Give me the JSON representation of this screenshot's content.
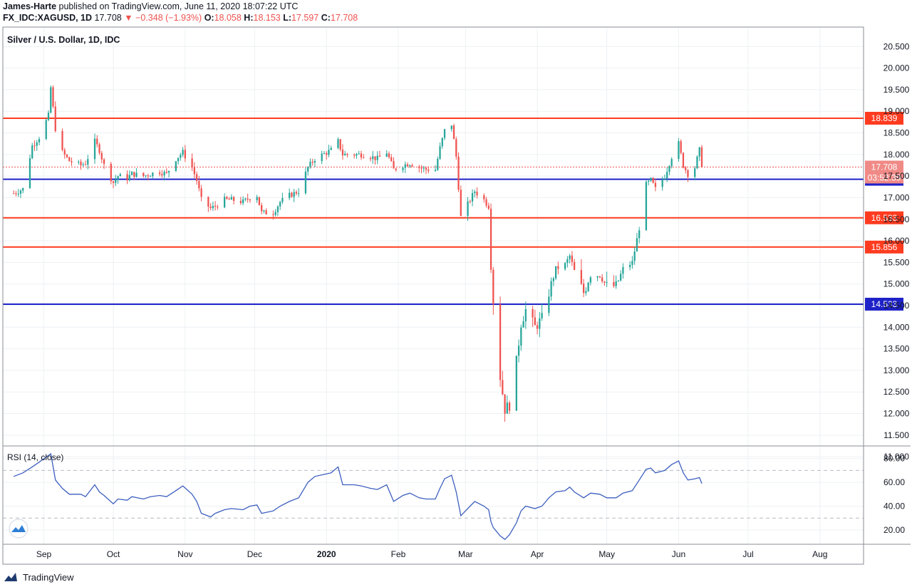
{
  "header": {
    "author": "James-Harte",
    "published_text": "published on TradingView.com, June 11, 2020 18:07:22 UTC",
    "symbol": "FX_IDC:XAGUSD, 1D",
    "last": "17.708",
    "change": "▼ −0.348 (−1.93%)",
    "o_label": "O:",
    "o": "18.058",
    "h_label": "H:",
    "h": "18.153",
    "l_label": "L:",
    "l": "17.597",
    "c_label": "C:",
    "c": "17.708"
  },
  "footer": {
    "brand": "TradingView",
    "logo_icon": "tradingview-logo-icon"
  },
  "colors": {
    "up": "#26a69a",
    "down": "#ef5350",
    "support": "#ff3b1f",
    "blue_line": "#1e22c8",
    "rsi": "#3d5fbf"
  },
  "chart_data": [
    {
      "type": "candlestick",
      "title": "Silver / U.S. Dollar, 1D, IDC",
      "ylim": [
        11.25,
        20.95
      ],
      "y_ticks": [
        "20.500",
        "20.000",
        "19.500",
        "19.000",
        "18.500",
        "18.000",
        "17.500",
        "17.000",
        "16.500",
        "16.000",
        "15.500",
        "15.000",
        "14.500",
        "14.000",
        "13.500",
        "13.000",
        "12.500",
        "12.000",
        "11.500",
        "11.000"
      ],
      "x_tick_labels": [
        "Sep",
        "Oct",
        "Nov",
        "Dec",
        "2020",
        "Feb",
        "Mar",
        "Apr",
        "May",
        "Jun",
        "Jul",
        "Aug"
      ],
      "horizontal_lines": [
        {
          "value": 18.839,
          "color": "red",
          "label": "18.839"
        },
        {
          "value": 17.426,
          "color": "blue",
          "label": "17.426"
        },
        {
          "value": 16.533,
          "color": "red",
          "label": "16.533"
        },
        {
          "value": 15.856,
          "color": "red",
          "label": "15.856"
        },
        {
          "value": 14.533,
          "color": "blue",
          "label": "14.533"
        }
      ],
      "last_price": {
        "value": 17.708,
        "label": "17.708",
        "countdown": "03:52:39"
      },
      "close_path": [
        [
          "2019-08-19",
          17.1
        ],
        [
          "2019-08-23",
          17.2
        ],
        [
          "2019-08-27",
          18.2
        ],
        [
          "2019-08-30",
          18.4
        ],
        [
          "2019-09-03",
          18.9
        ],
        [
          "2019-09-04",
          19.55
        ],
        [
          "2019-09-06",
          18.6
        ],
        [
          "2019-09-09",
          18.05
        ],
        [
          "2019-09-12",
          17.85
        ],
        [
          "2019-09-17",
          17.75
        ],
        [
          "2019-09-19",
          17.8
        ],
        [
          "2019-09-23",
          18.3
        ],
        [
          "2019-09-25",
          18.1
        ],
        [
          "2019-09-27",
          17.75
        ],
        [
          "2019-10-01",
          17.35
        ],
        [
          "2019-10-03",
          17.5
        ],
        [
          "2019-10-07",
          17.45
        ],
        [
          "2019-10-09",
          17.55
        ],
        [
          "2019-10-14",
          17.5
        ],
        [
          "2019-10-17",
          17.55
        ],
        [
          "2019-10-21",
          17.6
        ],
        [
          "2019-10-24",
          17.55
        ],
        [
          "2019-10-28",
          17.9
        ],
        [
          "2019-10-31",
          18.05
        ],
        [
          "2019-11-04",
          17.7
        ],
        [
          "2019-11-06",
          17.4
        ],
        [
          "2019-11-08",
          16.95
        ],
        [
          "2019-11-12",
          16.75
        ],
        [
          "2019-11-14",
          16.8
        ],
        [
          "2019-11-18",
          16.95
        ],
        [
          "2019-11-21",
          16.95
        ],
        [
          "2019-11-26",
          16.9
        ],
        [
          "2019-11-29",
          17.0
        ],
        [
          "2019-12-02",
          17.05
        ],
        [
          "2019-12-04",
          16.65
        ],
        [
          "2019-12-09",
          16.65
        ],
        [
          "2019-12-12",
          16.9
        ],
        [
          "2019-12-16",
          17.05
        ],
        [
          "2019-12-20",
          17.15
        ],
        [
          "2019-12-24",
          17.7
        ],
        [
          "2019-12-27",
          17.9
        ],
        [
          "2020-01-03",
          18.1
        ],
        [
          "2020-01-06",
          18.3
        ],
        [
          "2020-01-08",
          18.0
        ],
        [
          "2020-01-13",
          18.0
        ],
        [
          "2020-01-16",
          18.0
        ],
        [
          "2020-01-20",
          17.95
        ],
        [
          "2020-01-23",
          17.9
        ],
        [
          "2020-01-27",
          18.05
        ],
        [
          "2020-01-30",
          17.65
        ],
        [
          "2020-02-03",
          17.75
        ],
        [
          "2020-02-06",
          17.8
        ],
        [
          "2020-02-10",
          17.7
        ],
        [
          "2020-02-13",
          17.65
        ],
        [
          "2020-02-17",
          17.65
        ],
        [
          "2020-02-19",
          18.15
        ],
        [
          "2020-02-21",
          18.55
        ],
        [
          "2020-02-24",
          18.7
        ],
        [
          "2020-02-26",
          17.95
        ],
        [
          "2020-02-28",
          16.55
        ],
        [
          "2020-03-03",
          16.95
        ],
        [
          "2020-03-05",
          17.15
        ],
        [
          "2020-03-09",
          16.95
        ],
        [
          "2020-03-11",
          16.8
        ],
        [
          "2020-03-12",
          15.4
        ],
        [
          "2020-03-13",
          14.6
        ],
        [
          "2020-03-16",
          12.85
        ],
        [
          "2020-03-18",
          12.1
        ],
        [
          "2020-03-20",
          12.2
        ],
        [
          "2020-03-23",
          13.2
        ],
        [
          "2020-03-25",
          14.1
        ],
        [
          "2020-03-27",
          14.4
        ],
        [
          "2020-03-31",
          14.0
        ],
        [
          "2020-04-03",
          14.2
        ],
        [
          "2020-04-06",
          14.8
        ],
        [
          "2020-04-09",
          15.35
        ],
        [
          "2020-04-13",
          15.45
        ],
        [
          "2020-04-15",
          15.65
        ],
        [
          "2020-04-17",
          15.3
        ],
        [
          "2020-04-21",
          14.8
        ],
        [
          "2020-04-24",
          15.2
        ],
        [
          "2020-04-28",
          15.2
        ],
        [
          "2020-05-01",
          14.95
        ],
        [
          "2020-05-05",
          14.95
        ],
        [
          "2020-05-08",
          15.35
        ],
        [
          "2020-05-12",
          15.5
        ],
        [
          "2020-05-15",
          16.3
        ],
        [
          "2020-05-18",
          17.3
        ],
        [
          "2020-05-20",
          17.4
        ],
        [
          "2020-05-22",
          17.2
        ],
        [
          "2020-05-26",
          17.5
        ],
        [
          "2020-05-29",
          17.95
        ],
        [
          "2020-06-01",
          18.25
        ],
        [
          "2020-06-03",
          17.75
        ],
        [
          "2020-06-05",
          17.55
        ],
        [
          "2020-06-08",
          17.7
        ],
        [
          "2020-06-10",
          18.1
        ],
        [
          "2020-06-11",
          17.708
        ]
      ]
    },
    {
      "type": "line",
      "title": "RSI (14, close)",
      "ylim": [
        8,
        90
      ],
      "y_ticks": [
        "80.00",
        "60.00",
        "40.00",
        "20.00"
      ],
      "bands": [
        70,
        30
      ],
      "series": [
        {
          "values": [
            [
              "2019-08-19",
              65
            ],
            [
              "2019-08-23",
              68
            ],
            [
              "2019-08-27",
              73
            ],
            [
              "2019-08-30",
              77
            ],
            [
              "2019-09-04",
              84
            ],
            [
              "2019-09-06",
              62
            ],
            [
              "2019-09-09",
              55
            ],
            [
              "2019-09-12",
              50
            ],
            [
              "2019-09-17",
              50
            ],
            [
              "2019-09-19",
              48
            ],
            [
              "2019-09-23",
              58
            ],
            [
              "2019-09-25",
              52
            ],
            [
              "2019-09-27",
              49
            ],
            [
              "2019-10-01",
              42
            ],
            [
              "2019-10-03",
              46
            ],
            [
              "2019-10-07",
              45
            ],
            [
              "2019-10-09",
              48
            ],
            [
              "2019-10-14",
              46
            ],
            [
              "2019-10-17",
              48
            ],
            [
              "2019-10-21",
              49
            ],
            [
              "2019-10-24",
              48
            ],
            [
              "2019-10-28",
              53
            ],
            [
              "2019-10-31",
              57
            ],
            [
              "2019-11-04",
              50
            ],
            [
              "2019-11-06",
              44
            ],
            [
              "2019-11-08",
              34
            ],
            [
              "2019-11-12",
              31
            ],
            [
              "2019-11-14",
              34
            ],
            [
              "2019-11-18",
              37
            ],
            [
              "2019-11-21",
              38
            ],
            [
              "2019-11-26",
              37
            ],
            [
              "2019-11-29",
              40
            ],
            [
              "2019-12-02",
              41
            ],
            [
              "2019-12-04",
              34
            ],
            [
              "2019-12-09",
              36
            ],
            [
              "2019-12-12",
              40
            ],
            [
              "2019-12-16",
              44
            ],
            [
              "2019-12-20",
              47
            ],
            [
              "2019-12-24",
              60
            ],
            [
              "2019-12-27",
              65
            ],
            [
              "2020-01-03",
              68
            ],
            [
              "2020-01-06",
              73
            ],
            [
              "2020-01-08",
              58
            ],
            [
              "2020-01-13",
              58
            ],
            [
              "2020-01-16",
              57
            ],
            [
              "2020-01-20",
              55
            ],
            [
              "2020-01-23",
              54
            ],
            [
              "2020-01-27",
              58
            ],
            [
              "2020-01-30",
              44
            ],
            [
              "2020-02-03",
              49
            ],
            [
              "2020-02-06",
              51
            ],
            [
              "2020-02-10",
              47
            ],
            [
              "2020-02-13",
              46
            ],
            [
              "2020-02-17",
              46
            ],
            [
              "2020-02-19",
              55
            ],
            [
              "2020-02-21",
              63
            ],
            [
              "2020-02-24",
              66
            ],
            [
              "2020-02-26",
              52
            ],
            [
              "2020-02-28",
              32
            ],
            [
              "2020-03-03",
              40
            ],
            [
              "2020-03-05",
              44
            ],
            [
              "2020-03-09",
              40
            ],
            [
              "2020-03-11",
              37
            ],
            [
              "2020-03-12",
              27
            ],
            [
              "2020-03-13",
              22
            ],
            [
              "2020-03-16",
              15
            ],
            [
              "2020-03-18",
              12
            ],
            [
              "2020-03-20",
              16
            ],
            [
              "2020-03-23",
              26
            ],
            [
              "2020-03-25",
              36
            ],
            [
              "2020-03-27",
              40
            ],
            [
              "2020-03-31",
              38
            ],
            [
              "2020-04-03",
              40
            ],
            [
              "2020-04-06",
              47
            ],
            [
              "2020-04-09",
              52
            ],
            [
              "2020-04-13",
              53
            ],
            [
              "2020-04-15",
              56
            ],
            [
              "2020-04-17",
              52
            ],
            [
              "2020-04-21",
              47
            ],
            [
              "2020-04-24",
              51
            ],
            [
              "2020-04-28",
              50
            ],
            [
              "2020-05-01",
              47
            ],
            [
              "2020-05-05",
              47
            ],
            [
              "2020-05-08",
              51
            ],
            [
              "2020-05-12",
              53
            ],
            [
              "2020-05-15",
              62
            ],
            [
              "2020-05-18",
              71
            ],
            [
              "2020-05-20",
              72
            ],
            [
              "2020-05-22",
              68
            ],
            [
              "2020-05-26",
              70
            ],
            [
              "2020-05-29",
              75
            ],
            [
              "2020-06-01",
              78
            ],
            [
              "2020-06-03",
              68
            ],
            [
              "2020-06-05",
              62
            ],
            [
              "2020-06-08",
              63
            ],
            [
              "2020-06-10",
              64
            ],
            [
              "2020-06-11",
              59
            ]
          ]
        }
      ]
    }
  ]
}
